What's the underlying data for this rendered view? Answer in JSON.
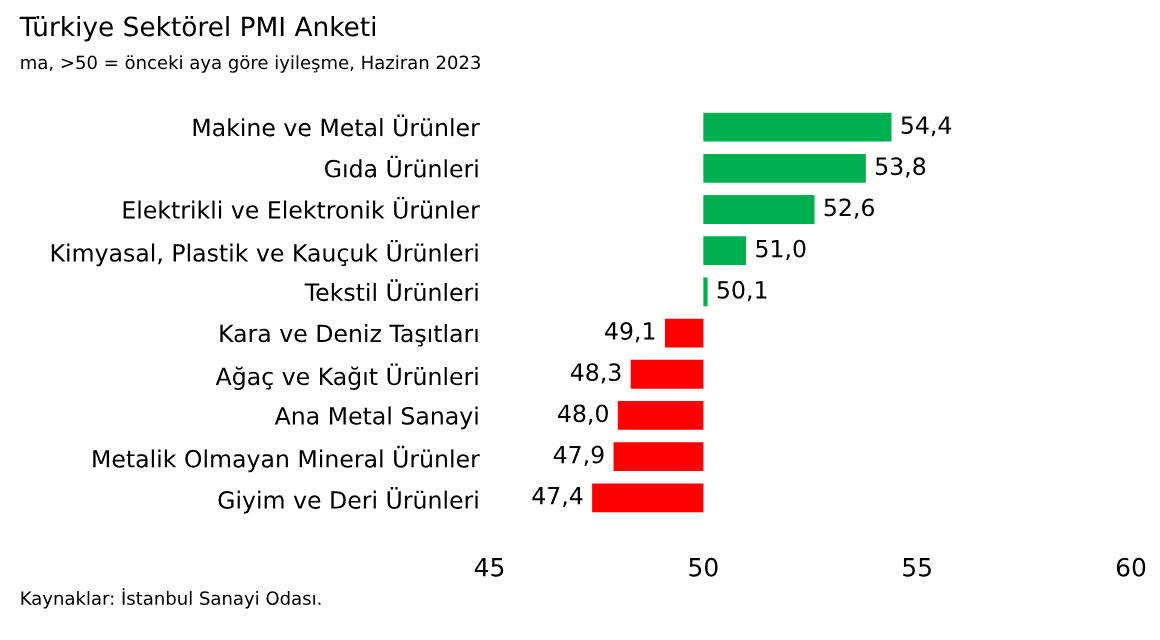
{
  "chart_data": {
    "type": "bar",
    "orientation": "horizontal",
    "title": "Türkiye Sektörel PMI Anketi",
    "subtitle": "ma, >50 = önceki aya göre iyileşme, Haziran 2023",
    "categories": [
      "Makine ve Metal Ürünler",
      "Gıda Ürünleri",
      "Elektrikli ve Elektronik Ürünler",
      "Kimyasal, Plastik ve Kauçuk Ürünleri",
      "Tekstil Ürünleri",
      "Kara ve Deniz Taşıtları",
      "Ağaç ve Kağıt Ürünleri",
      "Ana Metal Sanayi",
      "Metalik Olmayan Mineral Ürünler",
      "Giyim ve Deri Ürünleri"
    ],
    "base": [
      50,
      50,
      50,
      50,
      50,
      50,
      50,
      50,
      50,
      50
    ],
    "values": [
      4.4,
      3.8,
      2.6,
      1.0,
      0.1,
      -0.9,
      -1.7,
      -2.0,
      -2.1,
      -2.6
    ],
    "value_labels": [
      "54,4",
      "53,8",
      "52,6",
      "51,0",
      "50,1",
      "49,1",
      "48,3",
      "48,0",
      "47,9",
      "47,4"
    ],
    "colors": [
      "#00b050",
      "#00b050",
      "#00b050",
      "#00b050",
      "#00b050",
      "#ff0000",
      "#ff0000",
      "#ff0000",
      "#ff0000",
      "#ff0000"
    ],
    "xlim": [
      45,
      60
    ],
    "xticks": [
      45,
      50,
      55,
      60
    ],
    "grid": false,
    "legend": false,
    "annotations": [
      "Kaynaklar: İstanbul Sanayi Odası."
    ]
  }
}
